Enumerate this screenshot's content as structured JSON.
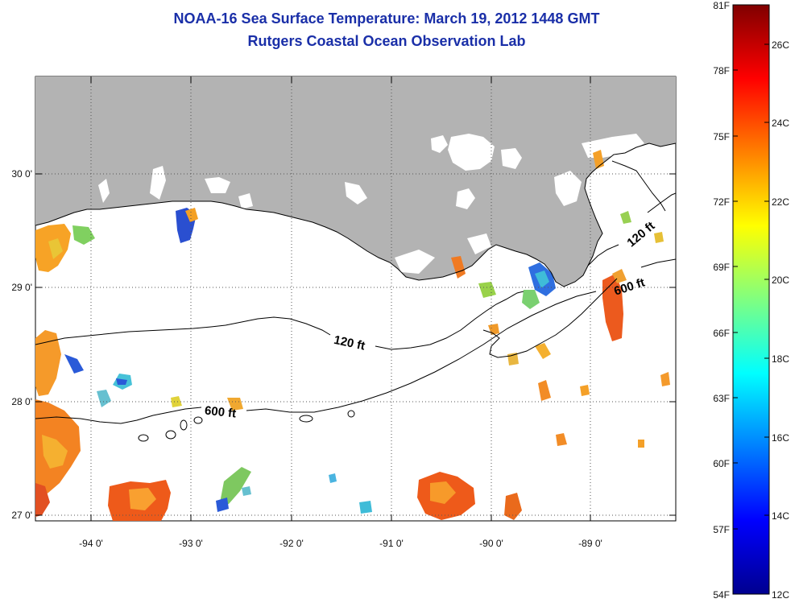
{
  "title": {
    "line1": "NOAA-16 Sea Surface Temperature:  March 19, 2012 1448 GMT",
    "line2": "Rutgers Coastal Ocean Observation Lab"
  },
  "map": {
    "lon_labels": [
      "-94 0'",
      "-93 0'",
      "-92 0'",
      "-91 0'",
      "-90 0'",
      "-89 0'"
    ],
    "lat_labels": [
      "30 0'",
      "29 0'",
      "28 0'",
      "27 0'"
    ],
    "contours": [
      {
        "label": "120 ft"
      },
      {
        "label": "600 ft"
      },
      {
        "label": "120 ft"
      },
      {
        "label": "600 ft"
      }
    ],
    "colors": {
      "land": "#b3b3b3",
      "ocean": "#ffffff",
      "gridline": "#555555"
    }
  },
  "colorbar": {
    "fahrenheit": [
      "81F",
      "78F",
      "75F",
      "72F",
      "69F",
      "66F",
      "63F",
      "60F",
      "57F",
      "54F"
    ],
    "celsius": [
      "26C",
      "24C",
      "22C",
      "20C",
      "18C",
      "16C",
      "14C",
      "12C"
    ],
    "colormap": [
      "#00008f",
      "#0000ff",
      "#0080ff",
      "#00ffff",
      "#80ff80",
      "#ffff00",
      "#ff8000",
      "#ff0000",
      "#800000"
    ]
  }
}
